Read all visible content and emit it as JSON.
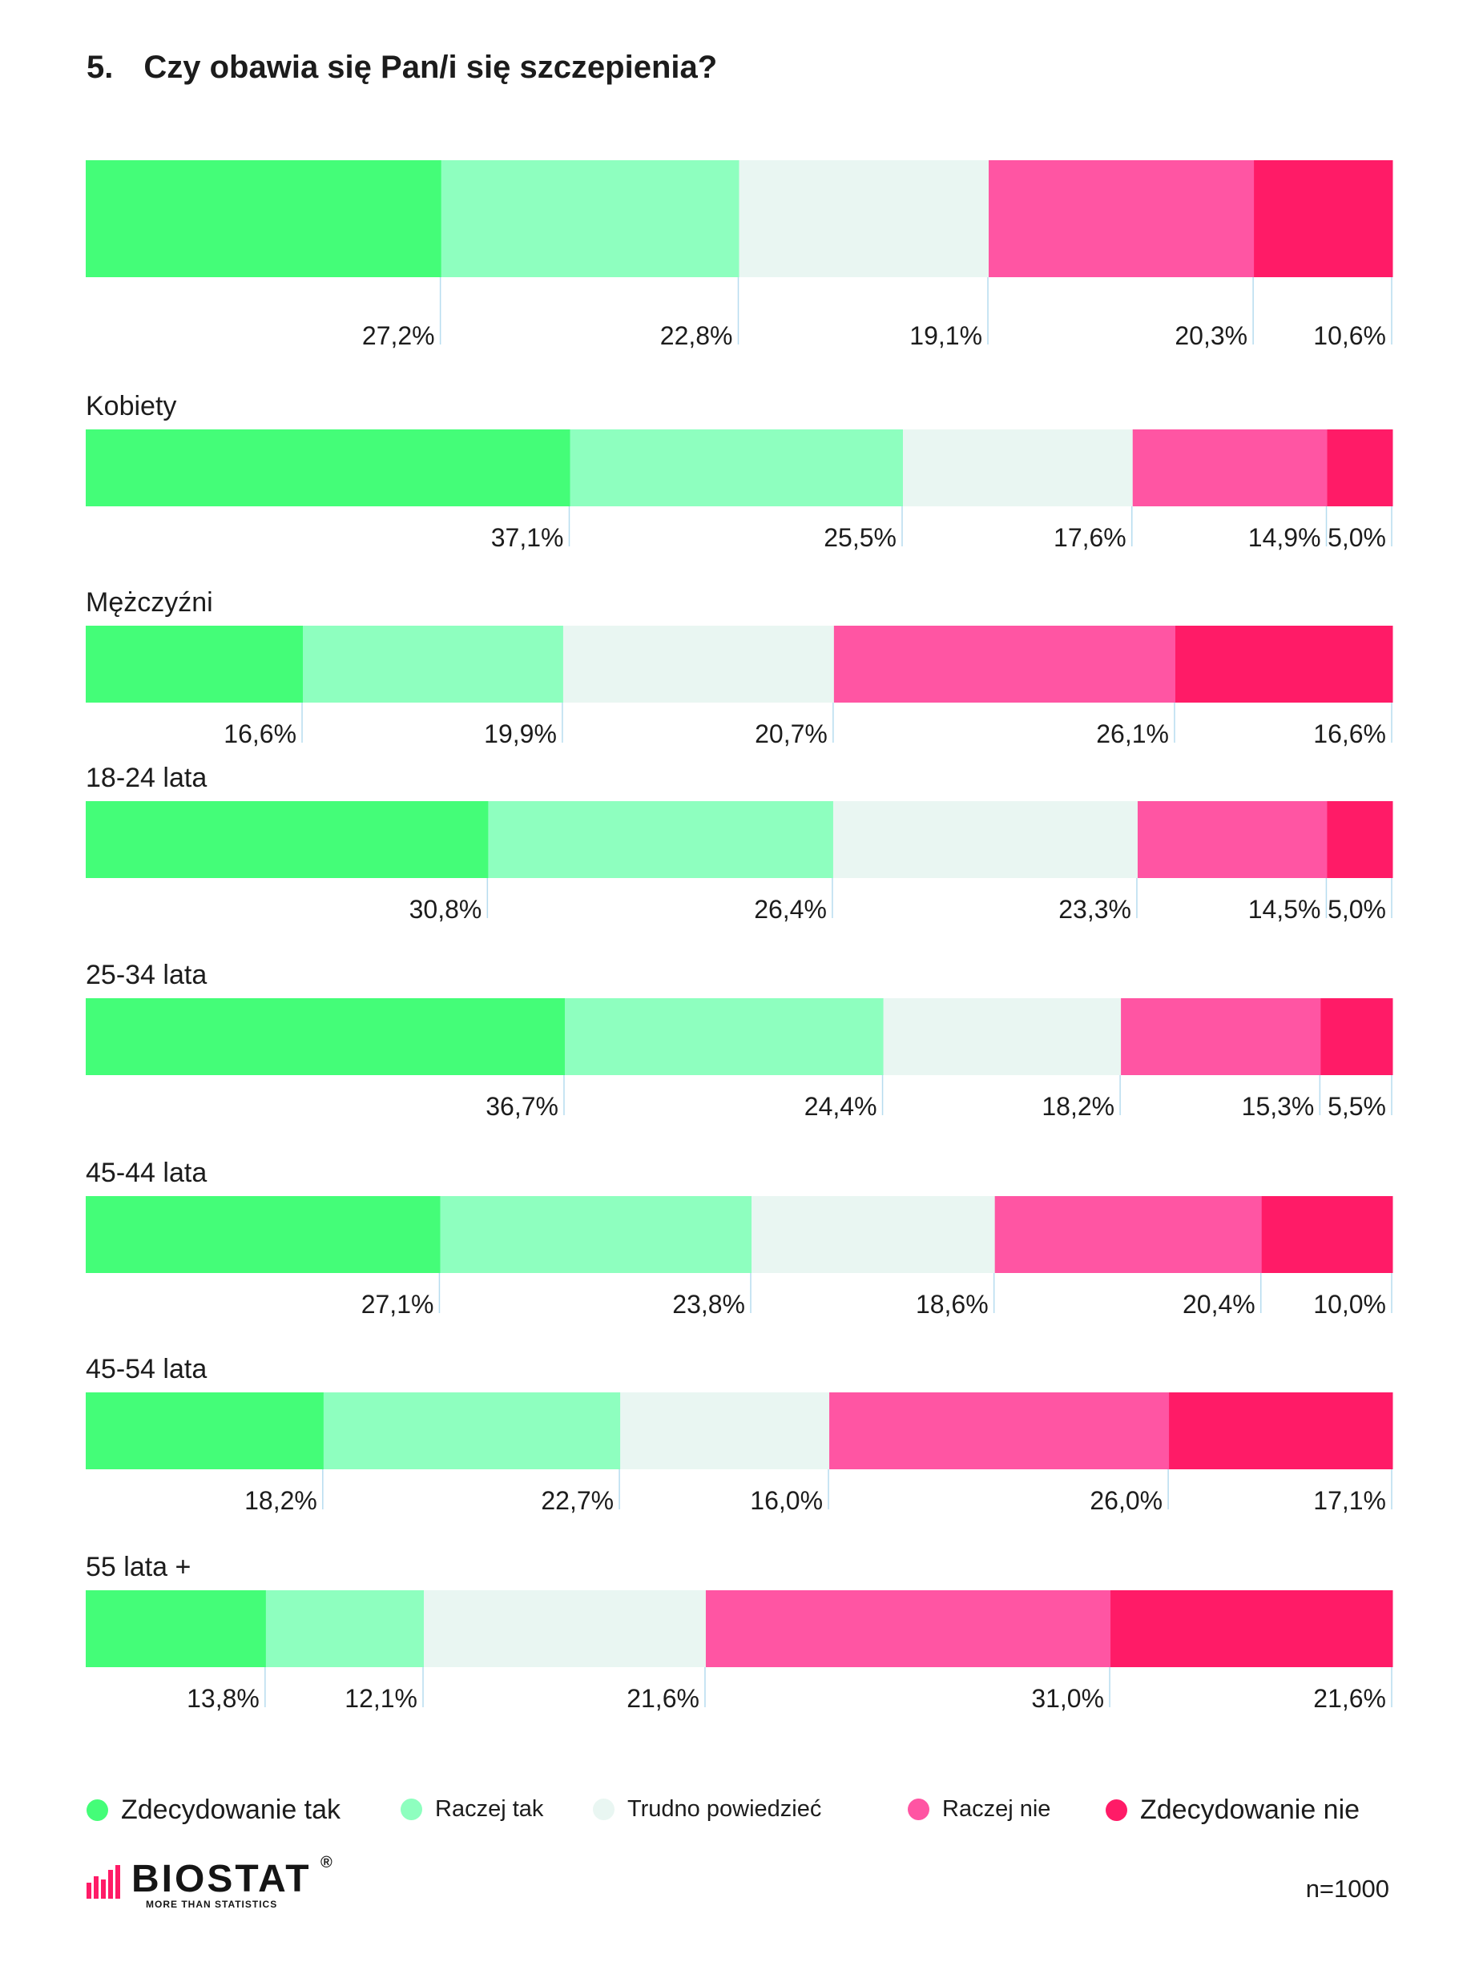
{
  "title": {
    "number": "5.",
    "text": "Czy obawia się Pan/i się szczepienia?"
  },
  "chart_data": {
    "type": "bar",
    "orientation": "horizontal",
    "stacked": true,
    "normalized": true,
    "categories": [
      "",
      "Kobiety",
      "Mężczyźni",
      "18-24 lata",
      "25-34 lata",
      "45-44 lata",
      "45-54 lata",
      "55 lata +"
    ],
    "series": [
      {
        "name": "Zdecydowanie tak",
        "color": "#44fd78",
        "values": [
          27.2,
          37.1,
          16.6,
          30.8,
          36.7,
          27.1,
          18.2,
          13.8
        ],
        "labels": [
          "27,2%",
          "37,1%",
          "16,6%",
          "30,8%",
          "36,7%",
          "27,1%",
          "18,2%",
          "13,8%"
        ]
      },
      {
        "name": "Raczej tak",
        "color": "#8effbf",
        "values": [
          22.8,
          25.5,
          19.9,
          26.4,
          24.4,
          23.8,
          22.7,
          12.1
        ],
        "labels": [
          "22,8%",
          "25,5%",
          "19,9%",
          "26,4%",
          "24,4%",
          "23,8%",
          "22,7%",
          "12,1%"
        ]
      },
      {
        "name": "Trudno powiedzieć",
        "color": "#e9f6f2",
        "values": [
          19.1,
          17.6,
          20.7,
          23.3,
          18.2,
          18.6,
          16.0,
          21.6
        ],
        "labels": [
          "19,1%",
          "17,6%",
          "20,7%",
          "23,3%",
          "18,2%",
          "18,6%",
          "16,0%",
          "21,6%"
        ]
      },
      {
        "name": "Raczej nie",
        "color": "#ff55a3",
        "values": [
          20.3,
          14.9,
          26.1,
          14.5,
          15.3,
          20.4,
          26.0,
          31.0
        ],
        "labels": [
          "20,3%",
          "14,9%",
          "26,1%",
          "14,5%",
          "15,3%",
          "20,4%",
          "26,0%",
          "31,0%"
        ]
      },
      {
        "name": "Zdecydowanie nie",
        "color": "#ff1b67",
        "values": [
          10.6,
          5.0,
          16.6,
          5.0,
          5.5,
          10.0,
          17.1,
          21.6
        ],
        "labels": [
          "10,6%",
          "5,0%",
          "16,6%",
          "5,0%",
          "5,5%",
          "10,0%",
          "17,1%",
          "21,6%"
        ]
      }
    ],
    "legend": "bottom"
  },
  "legend_items": [
    {
      "label": "Zdecydowanie tak",
      "color": "#44fd78"
    },
    {
      "label": "Raczej tak",
      "color": "#8effbf"
    },
    {
      "label": "Trudno powiedzieć",
      "color": "#e9f6f2"
    },
    {
      "label": "Raczej nie",
      "color": "#ff55a3"
    },
    {
      "label": "Zdecydowanie nie",
      "color": "#ff1b67"
    }
  ],
  "logo": {
    "name": "BIOSTAT",
    "registered": "®",
    "tagline": "MORE THAN STATISTICS"
  },
  "sample_size": "n=1000"
}
